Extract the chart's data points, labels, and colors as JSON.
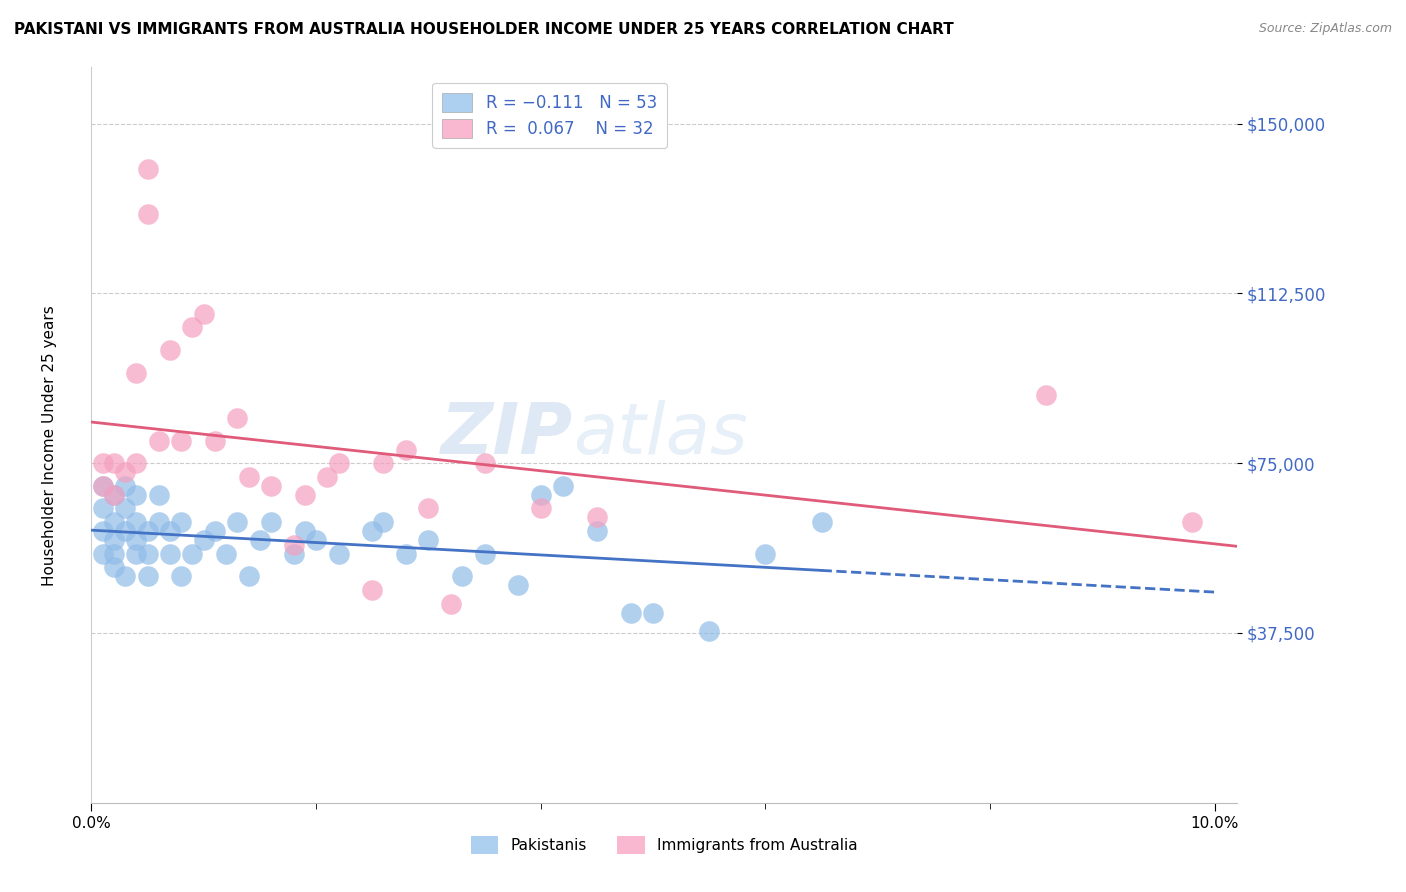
{
  "title": "PAKISTANI VS IMMIGRANTS FROM AUSTRALIA HOUSEHOLDER INCOME UNDER 25 YEARS CORRELATION CHART",
  "source": "Source: ZipAtlas.com",
  "ylabel": "Householder Income Under 25 years",
  "ytick_labels": [
    "$37,500",
    "$75,000",
    "$112,500",
    "$150,000"
  ],
  "ytick_values": [
    37500,
    75000,
    112500,
    150000
  ],
  "ymin": 0,
  "ymax": 162500,
  "xmin": 0.0,
  "xmax": 0.102,
  "watermark_zip": "ZIP",
  "watermark_atlas": "atlas",
  "pakistani_color": "#90bce8",
  "australia_color": "#f5a0bf",
  "trend_pakistan_color": "#4472c4",
  "trend_australia_color": "#e05a7a",
  "legend_color1": "#aed0f0",
  "legend_color2": "#f9b8d0",
  "pakistani_x": [
    0.001,
    0.001,
    0.001,
    0.001,
    0.002,
    0.002,
    0.002,
    0.002,
    0.002,
    0.003,
    0.003,
    0.003,
    0.003,
    0.004,
    0.004,
    0.004,
    0.004,
    0.005,
    0.005,
    0.005,
    0.006,
    0.006,
    0.007,
    0.007,
    0.008,
    0.008,
    0.009,
    0.01,
    0.011,
    0.012,
    0.013,
    0.014,
    0.015,
    0.016,
    0.018,
    0.019,
    0.02,
    0.022,
    0.025,
    0.026,
    0.028,
    0.03,
    0.033,
    0.035,
    0.038,
    0.04,
    0.042,
    0.045,
    0.048,
    0.05,
    0.055,
    0.06,
    0.065
  ],
  "pakistani_y": [
    55000,
    60000,
    65000,
    70000,
    55000,
    58000,
    62000,
    68000,
    52000,
    60000,
    65000,
    70000,
    50000,
    58000,
    62000,
    68000,
    55000,
    60000,
    50000,
    55000,
    62000,
    68000,
    55000,
    60000,
    50000,
    62000,
    55000,
    58000,
    60000,
    55000,
    62000,
    50000,
    58000,
    62000,
    55000,
    60000,
    58000,
    55000,
    60000,
    62000,
    55000,
    58000,
    50000,
    55000,
    48000,
    68000,
    70000,
    60000,
    42000,
    42000,
    38000,
    55000,
    62000
  ],
  "australia_x": [
    0.001,
    0.001,
    0.002,
    0.002,
    0.003,
    0.004,
    0.004,
    0.005,
    0.005,
    0.006,
    0.007,
    0.008,
    0.009,
    0.01,
    0.011,
    0.013,
    0.014,
    0.016,
    0.018,
    0.019,
    0.021,
    0.022,
    0.025,
    0.026,
    0.028,
    0.03,
    0.032,
    0.035,
    0.04,
    0.045,
    0.085,
    0.098
  ],
  "australia_y": [
    70000,
    75000,
    68000,
    75000,
    73000,
    95000,
    75000,
    130000,
    140000,
    80000,
    100000,
    80000,
    105000,
    108000,
    80000,
    85000,
    72000,
    70000,
    57000,
    68000,
    72000,
    75000,
    47000,
    75000,
    78000,
    65000,
    44000,
    75000,
    65000,
    63000,
    90000,
    62000
  ]
}
